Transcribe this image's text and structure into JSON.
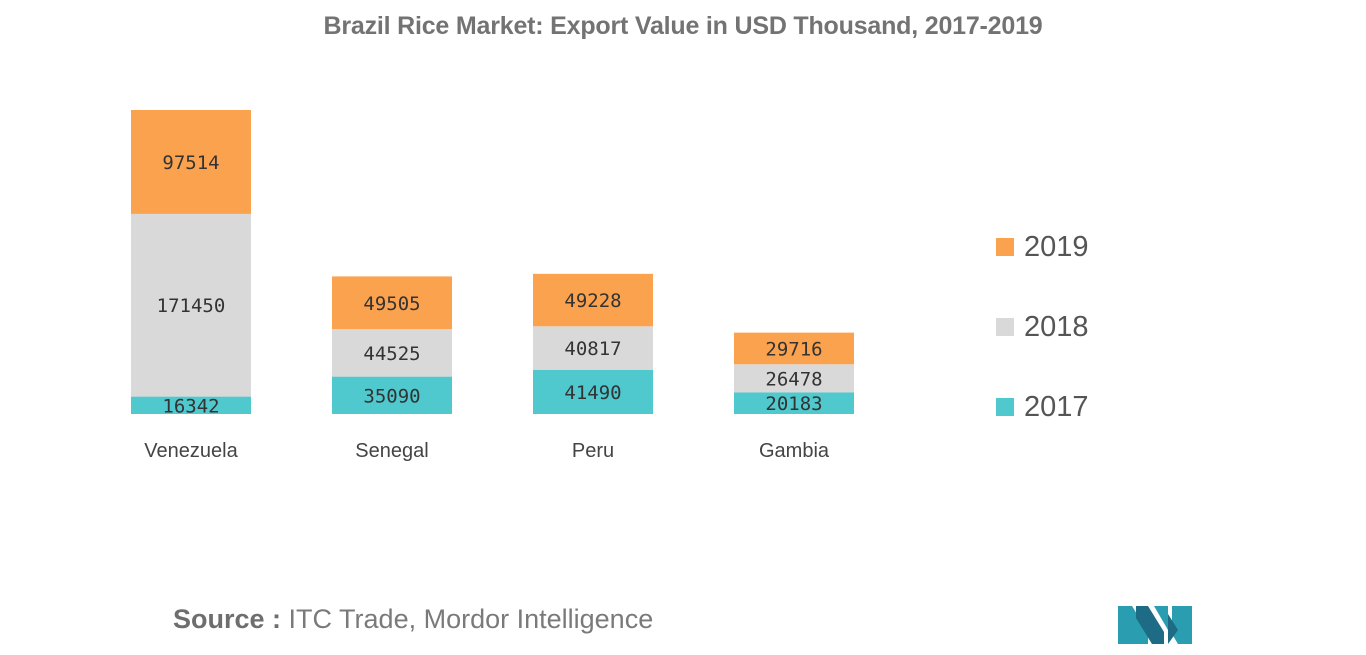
{
  "title": "Brazil Rice Market: Export Value in USD Thousand, 2017-2019",
  "source": {
    "prefix": "Source :",
    "text": "ITC Trade, Mordor Intelligence"
  },
  "colors": {
    "s2017": "#4fc9cd",
    "s2018": "#d9d9d9",
    "s2019": "#fba24f",
    "axis_text": "#444444",
    "logo_teal": "#2a9db1",
    "logo_dark": "#1d6b84"
  },
  "chart_data": {
    "type": "bar",
    "stacked": true,
    "title": "Brazil Rice Market: Export Value in USD Thousand, 2017-2019",
    "categories": [
      "Venezuela",
      "Senegal",
      "Peru",
      "Gambia"
    ],
    "series": [
      {
        "name": "2017",
        "values": [
          16342,
          35090,
          41490,
          20183
        ]
      },
      {
        "name": "2018",
        "values": [
          171450,
          44525,
          40817,
          26478
        ]
      },
      {
        "name": "2019",
        "values": [
          97514,
          49505,
          49228,
          29716
        ]
      }
    ],
    "ylim": [
      0,
      285306
    ],
    "grid": false,
    "legend_position": "right",
    "data_labels": true
  }
}
